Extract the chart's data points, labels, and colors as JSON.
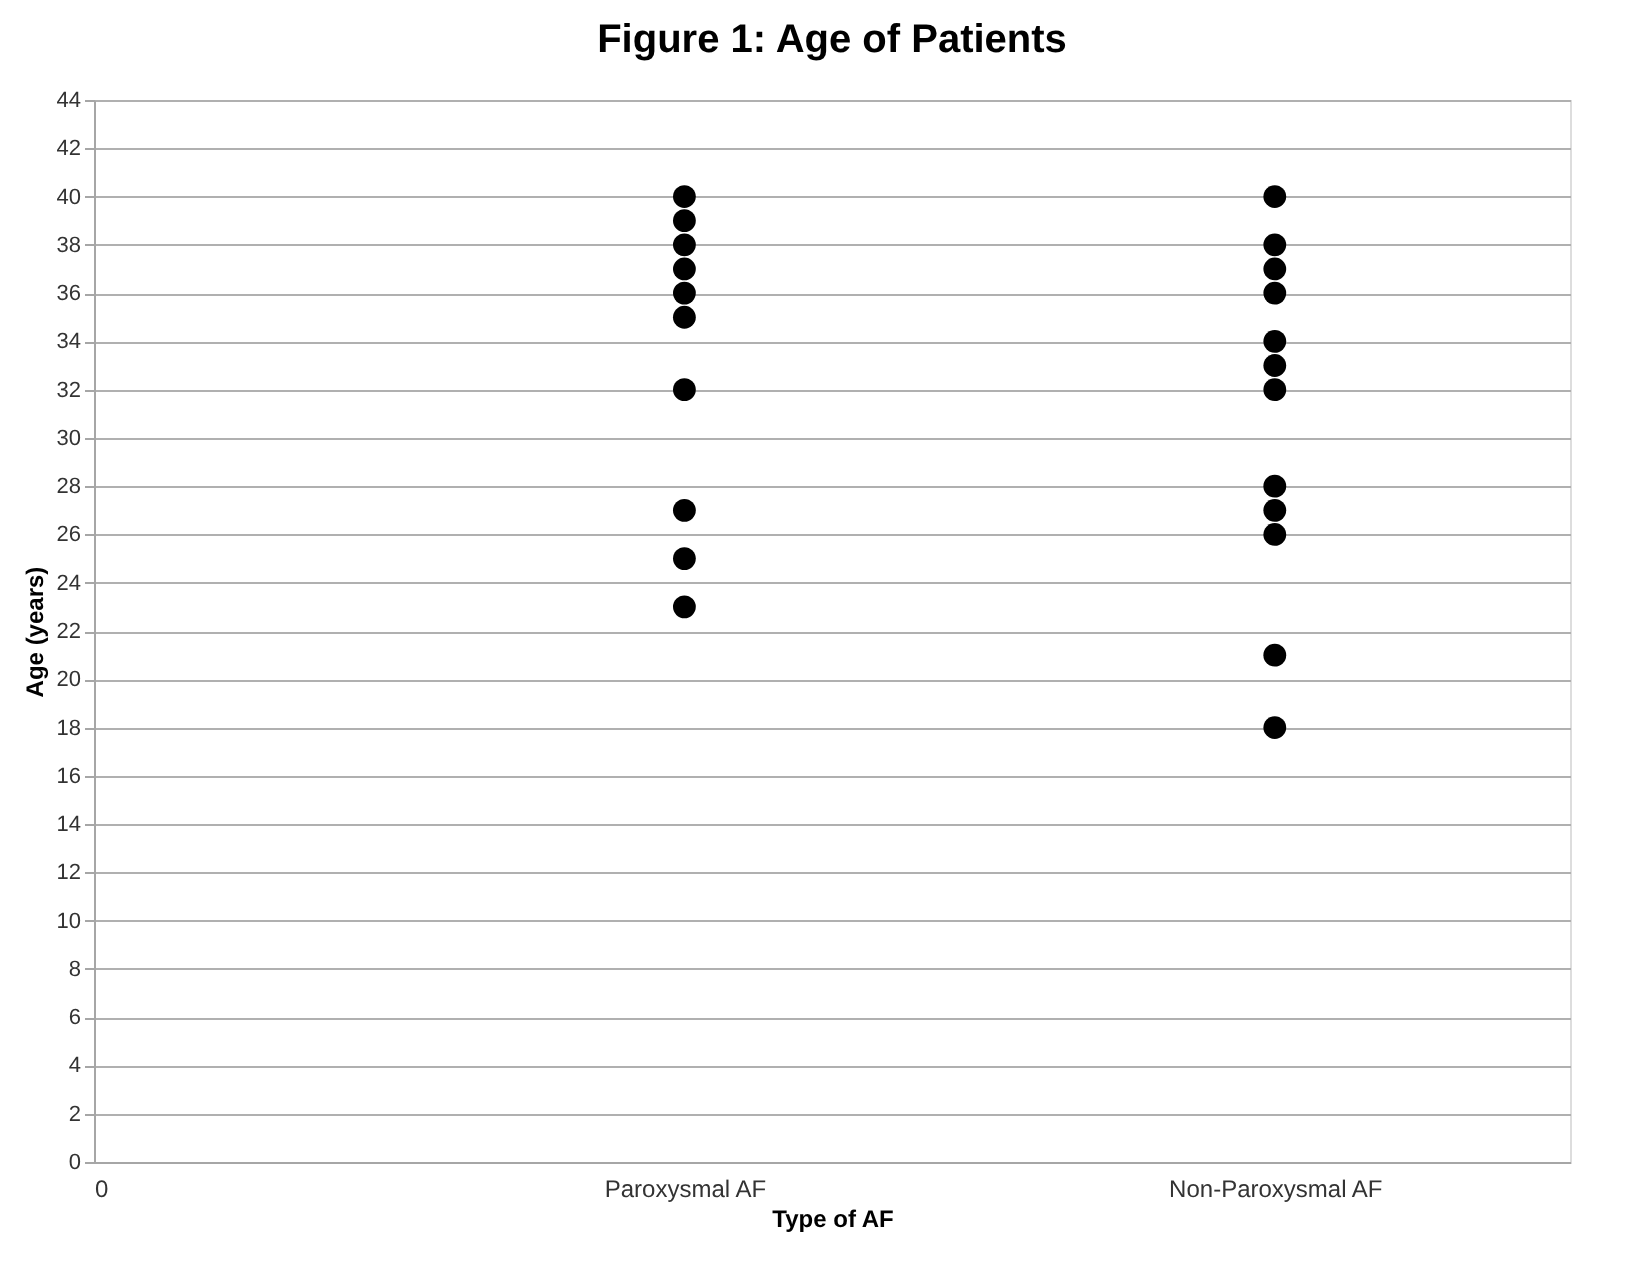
{
  "chart_data": {
    "type": "scatter",
    "title": "Figure 1: Age of Patients",
    "xlabel": "Type of AF",
    "ylabel": "Age (years)",
    "categories": [
      "0",
      "Paroxysmal AF",
      "Non-Paroxysmal AF"
    ],
    "series": [
      {
        "color": "#000000",
        "x": [
          "Paroxysmal AF",
          "Paroxysmal AF",
          "Paroxysmal AF",
          "Paroxysmal AF",
          "Paroxysmal AF",
          "Paroxysmal AF",
          "Paroxysmal AF",
          "Paroxysmal AF",
          "Paroxysmal AF",
          "Paroxysmal AF"
        ],
        "values": [
          40,
          39,
          38,
          37,
          36,
          35,
          32,
          27,
          25,
          23
        ]
      },
      {
        "color": "#000000",
        "x": [
          "Non-Paroxysmal AF",
          "Non-Paroxysmal AF",
          "Non-Paroxysmal AF",
          "Non-Paroxysmal AF",
          "Non-Paroxysmal AF",
          "Non-Paroxysmal AF",
          "Non-Paroxysmal AF",
          "Non-Paroxysmal AF",
          "Non-Paroxysmal AF",
          "Non-Paroxysmal AF",
          "Non-Paroxysmal AF",
          "Non-Paroxysmal AF"
        ],
        "values": [
          40,
          38,
          37,
          36,
          34,
          33,
          32,
          28,
          27,
          26,
          21,
          18
        ]
      }
    ],
    "ylim": [
      0,
      44
    ],
    "yticks": [
      0,
      2,
      4,
      6,
      8,
      10,
      12,
      14,
      16,
      18,
      20,
      22,
      24,
      26,
      28,
      30,
      32,
      34,
      36,
      38,
      40,
      42,
      44
    ],
    "grid": "y"
  }
}
